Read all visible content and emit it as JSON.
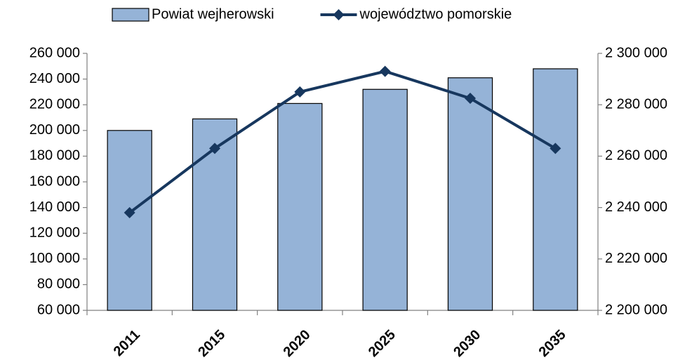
{
  "chart_data": {
    "type": "bar_line",
    "categories": [
      "2011",
      "2015",
      "2020",
      "2025",
      "2030",
      "2035"
    ],
    "series": [
      {
        "name": "Powiat wejherowski",
        "type": "bar",
        "color": "#95b3d7",
        "axis": "y",
        "values": [
          200000,
          209000,
          221000,
          232000,
          241000,
          248000
        ]
      },
      {
        "name": "województwo pomorskie",
        "type": "line",
        "color": "#17375e",
        "axis": "y2",
        "values": [
          2238000,
          2263000,
          2285000,
          2293000,
          2282500,
          2263000
        ]
      }
    ],
    "ylim": [
      60000,
      260000
    ],
    "yticks": [
      {
        "value": 60000,
        "label": "60 000"
      },
      {
        "value": 80000,
        "label": "80 000"
      },
      {
        "value": 100000,
        "label": "100 000"
      },
      {
        "value": 120000,
        "label": "120 000"
      },
      {
        "value": 140000,
        "label": "140 000"
      },
      {
        "value": 160000,
        "label": "160 000"
      },
      {
        "value": 180000,
        "label": "180 000"
      },
      {
        "value": 200000,
        "label": "200 000"
      },
      {
        "value": 220000,
        "label": "220 000"
      },
      {
        "value": 240000,
        "label": "240 000"
      },
      {
        "value": 260000,
        "label": "260 000"
      }
    ],
    "y2lim": [
      2200000,
      2300000
    ],
    "y2ticks": [
      {
        "value": 2200000,
        "label": "2 200 000"
      },
      {
        "value": 2220000,
        "label": "2 220 000"
      },
      {
        "value": 2240000,
        "label": "2 240 000"
      },
      {
        "value": 2260000,
        "label": "2 260 000"
      },
      {
        "value": 2280000,
        "label": "2 280 000"
      },
      {
        "value": 2300000,
        "label": "2 300 000"
      }
    ],
    "legend": "top"
  }
}
